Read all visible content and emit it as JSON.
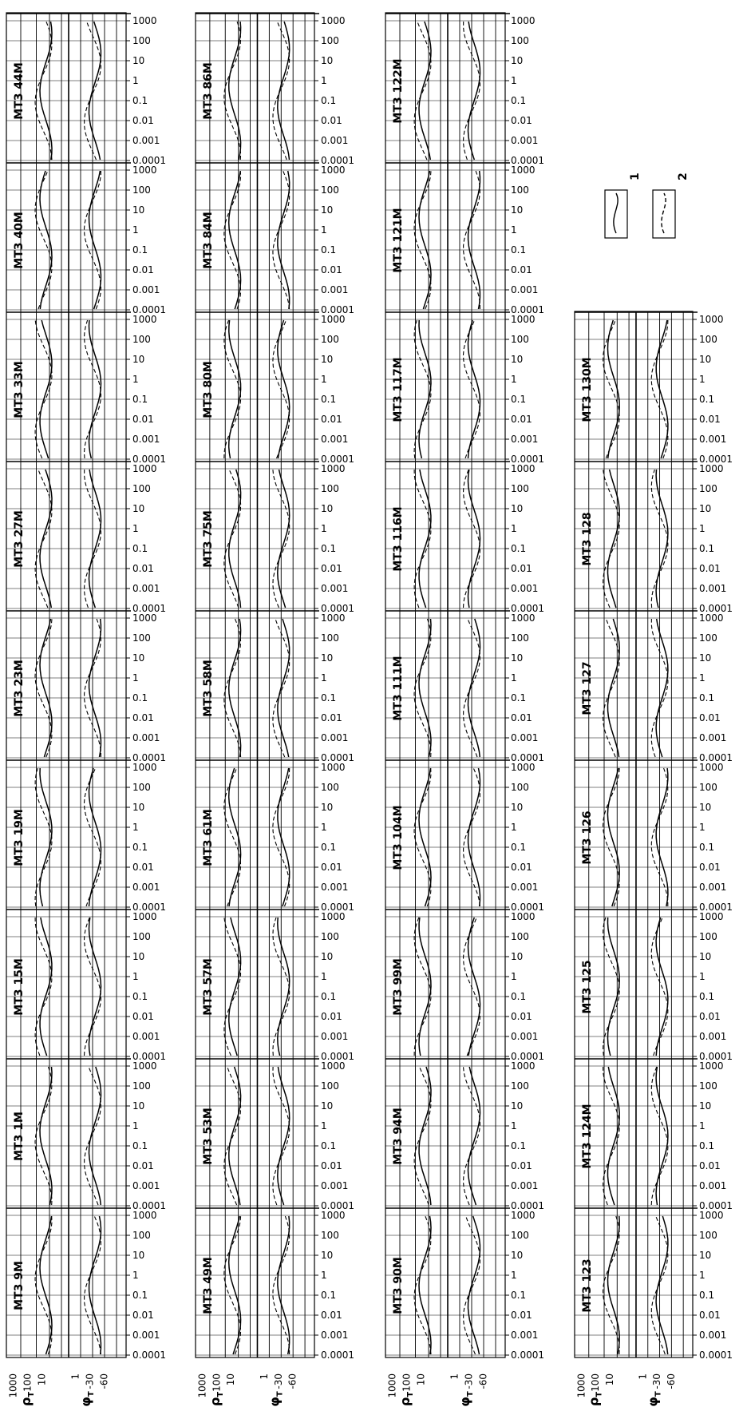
{
  "chart_data": {
    "type": "line",
    "description_note": "",
    "period_ticks": [
      "0.0001",
      "0.001",
      "0.01",
      "0.1",
      "1",
      "10",
      "100",
      "1000"
    ],
    "rho_axis": {
      "symbol": "ρ",
      "subscript": "T",
      "ticks": [
        "1000",
        "100",
        "10"
      ]
    },
    "phi_axis": {
      "symbol": "φ",
      "subscript": "T",
      "ticks": [
        "1",
        "-30",
        "-60"
      ]
    },
    "legend": [
      {
        "key": "1",
        "style": "solid"
      },
      {
        "key": "2",
        "style": "dashed"
      }
    ],
    "columns": [
      {
        "stations": [
          "MT3 9M",
          "MT3 1M",
          "MT3 15M",
          "MT3 19M",
          "MT3 23M",
          "MT3 27M",
          "MT3 33M",
          "MT3 40M",
          "MT3 44M"
        ]
      },
      {
        "stations": [
          "MT3 49M",
          "MT3 53M",
          "MT3 57M",
          "MT3 61M",
          "MT3 58M",
          "MT3 75M",
          "MT3 80M",
          "MT3 84M",
          "MT3 86M"
        ]
      },
      {
        "stations": [
          "MT3 90M",
          "MT3 94M",
          "MT3 99M",
          "MT3 104M",
          "MT3 111M",
          "MT3 116M",
          "MT3 117M",
          "MT3 121M",
          "MT3 122M"
        ]
      },
      {
        "stations": [
          "MT3 123",
          "MT3 124M",
          "MT3 125",
          "MT3 126",
          "MT3 127",
          "MT3 128",
          "MT3 130M"
        ]
      }
    ]
  }
}
